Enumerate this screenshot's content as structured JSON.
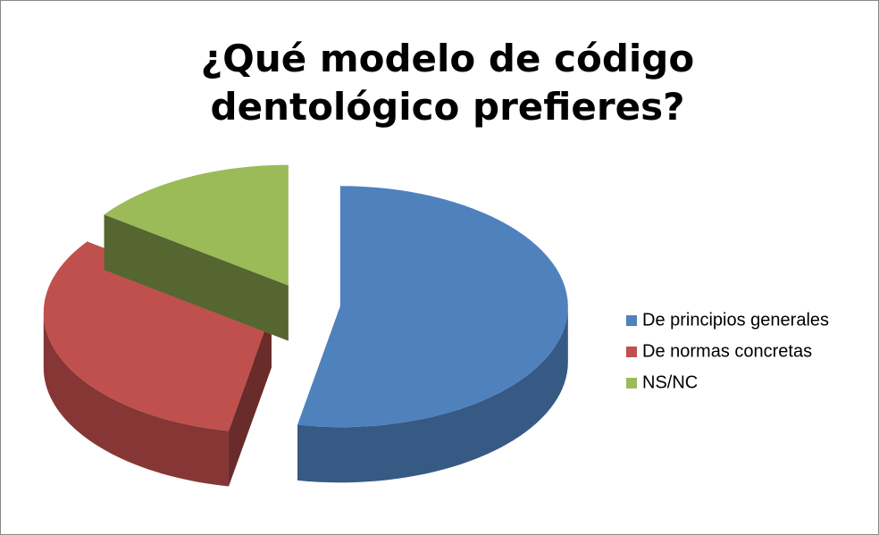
{
  "chart_data": {
    "type": "pie3d",
    "title": "¿Qué modelo de código dentológico prefieres?",
    "categories": [
      "De principios generales",
      "De normas concretas",
      "NS/NC"
    ],
    "values": [
      53,
      32,
      15
    ],
    "colors": [
      "#4f81bd",
      "#c0504d",
      "#9bbb59"
    ],
    "legend": "right"
  }
}
